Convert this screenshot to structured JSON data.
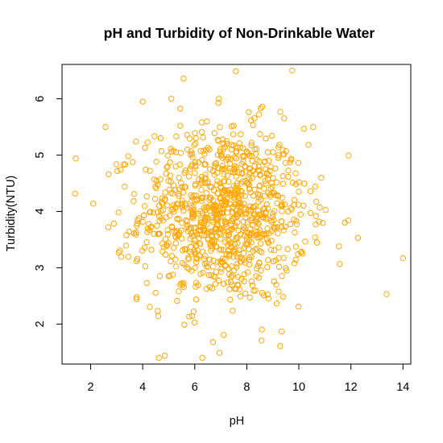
{
  "chart_data": {
    "type": "scatter",
    "title": "pH and Turbidity of Non-Drinkable Water",
    "xlabel": "pH",
    "ylabel": "Turbidity(NTU)",
    "xlim": [
      0.9,
      14.3
    ],
    "ylim": [
      1.29,
      6.61
    ],
    "xticks": [
      "2",
      "4",
      "6",
      "8",
      "10",
      "12",
      "14"
    ],
    "yticks": [
      "2",
      "3",
      "4",
      "5",
      "6"
    ],
    "grid": false,
    "legend": "none",
    "point_color": "#FFA500",
    "generated_cloud": {
      "count": 1000,
      "x_mean": 7.1,
      "x_sd": 1.6,
      "y_mean": 3.95,
      "y_sd": 0.78,
      "x_range": [
        1.4,
        14.0
      ],
      "y_range": [
        1.4,
        6.5
      ],
      "seed": 12345
    },
    "x": [
      1.43,
      2.57,
      2.69,
      14.0,
      13.37,
      12.27,
      7.58,
      5.57,
      5.1,
      4.85,
      6.95,
      9.34,
      4.0,
      8.16,
      6.7,
      6.93
    ],
    "y": [
      4.94,
      5.5,
      4.66,
      3.17,
      2.53,
      3.53,
      6.49,
      6.36,
      6.0,
      1.44,
      1.49,
      1.87,
      5.95,
      5.62,
      1.68,
      6.0
    ]
  }
}
